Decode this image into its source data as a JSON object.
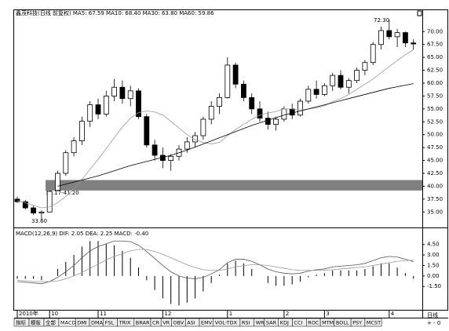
{
  "header": "鑫茂科技(日线 前复权) MA5: 67.59 MA10: 68.40 MA30: 63.80 MA60: 59.86",
  "annotations": {
    "high": "72.30",
    "low": "33.60",
    "band": "39.17-41.20"
  },
  "chart_data": [
    {
      "type": "candlestick",
      "band": [
        39.17,
        41.2
      ],
      "band_color": "#808080",
      "color": "#000000",
      "categories": [
        "2010年",
        null,
        null,
        null,
        "10",
        null,
        null,
        null,
        null,
        null,
        "11",
        null,
        null,
        null,
        null,
        null,
        null,
        null,
        "12",
        null,
        null,
        null,
        null,
        null,
        null,
        null,
        "1",
        null,
        null,
        null,
        null,
        null,
        null,
        "2",
        null,
        null,
        null,
        null,
        "3",
        null,
        null,
        null,
        null,
        null,
        null,
        null,
        "4",
        null,
        null,
        null
      ],
      "open": [
        37.5,
        37.0,
        35.8,
        34.8,
        35.0,
        39.2,
        42.5,
        46.5,
        48.8,
        52.6,
        55.8,
        54.0,
        57.5,
        59.2,
        57.0,
        58.5,
        53.5,
        48.0,
        46.0,
        45.0,
        45.8,
        47.2,
        48.6,
        49.8,
        53.0,
        55.5,
        57.2,
        63.5,
        59.8,
        57.2,
        55.0,
        53.2,
        52.0,
        53.0,
        55.0,
        53.8,
        56.5,
        58.8,
        57.8,
        59.5,
        61.5,
        59.2,
        60.5,
        62.5,
        64.0,
        67.5,
        70.2,
        69.0,
        69.8,
        67.8
      ],
      "high": [
        38.0,
        37.3,
        36.2,
        35.3,
        39.2,
        43.0,
        47.0,
        49.5,
        53.5,
        56.5,
        57.0,
        58.5,
        60.8,
        60.5,
        59.5,
        59.0,
        54.0,
        49.0,
        47.5,
        46.2,
        48.0,
        49.5,
        50.5,
        53.5,
        56.5,
        58.0,
        65.0,
        64.0,
        60.5,
        58.0,
        56.5,
        54.5,
        53.5,
        55.5,
        56.0,
        57.0,
        59.5,
        60.5,
        60.0,
        62.0,
        62.5,
        61.0,
        63.0,
        64.5,
        68.0,
        71.0,
        72.3,
        70.5,
        70.0,
        68.5
      ],
      "low": [
        36.8,
        35.5,
        34.5,
        33.6,
        35.0,
        39.0,
        42.0,
        45.8,
        48.0,
        51.5,
        53.0,
        53.5,
        56.5,
        56.0,
        55.5,
        53.0,
        47.5,
        45.0,
        43.5,
        43.0,
        45.0,
        46.5,
        47.5,
        49.0,
        52.0,
        54.0,
        57.0,
        59.0,
        56.5,
        54.0,
        52.5,
        51.0,
        50.8,
        52.5,
        53.0,
        53.5,
        56.0,
        57.0,
        57.5,
        58.5,
        58.8,
        58.0,
        60.0,
        61.5,
        63.5,
        66.5,
        68.5,
        67.0,
        67.0,
        66.5
      ],
      "close": [
        37.0,
        35.8,
        34.8,
        35.0,
        39.0,
        42.5,
        46.5,
        48.8,
        52.6,
        55.8,
        54.0,
        57.5,
        59.2,
        57.0,
        58.5,
        53.5,
        48.0,
        46.0,
        45.0,
        45.8,
        47.2,
        48.6,
        49.8,
        53.0,
        55.5,
        57.2,
        63.5,
        59.8,
        57.2,
        55.0,
        53.2,
        52.0,
        53.0,
        55.0,
        53.8,
        56.5,
        58.8,
        57.8,
        59.5,
        61.5,
        59.2,
        60.5,
        62.5,
        64.0,
        67.5,
        70.2,
        69.0,
        69.8,
        67.8,
        67.6
      ],
      "lines": [
        {
          "color": "#999999",
          "values": [
            37.2,
            36.8,
            36.3,
            35.8,
            36.0,
            36.8,
            38.0,
            39.5,
            41.3,
            43.3,
            45.2,
            47.3,
            49.4,
            51.5,
            53.2,
            54.3,
            54.6,
            54.4,
            53.8,
            52.6,
            51.3,
            50.0,
            49.0,
            48.5,
            48.2,
            48.5,
            49.8,
            51.0,
            52.0,
            53.0,
            53.8,
            54.2,
            54.5,
            55.0,
            55.0,
            54.8,
            55.0,
            55.2,
            55.6,
            56.4,
            57.0,
            57.8,
            58.8,
            59.8,
            60.8,
            62.0,
            63.2,
            64.4,
            65.5,
            66.5
          ]
        },
        {
          "color": "#000000",
          "values": [
            null,
            null,
            null,
            null,
            null,
            40.0,
            40.4,
            40.8,
            41.2,
            41.6,
            42.0,
            42.5,
            43.0,
            43.5,
            44.0,
            44.4,
            44.8,
            45.2,
            45.6,
            46.0,
            46.5,
            47.0,
            47.6,
            48.2,
            48.8,
            49.4,
            50.0,
            50.6,
            51.2,
            51.8,
            52.3,
            52.8,
            53.3,
            53.8,
            54.2,
            54.6,
            55.0,
            55.4,
            55.8,
            56.2,
            56.6,
            57.0,
            57.4,
            57.8,
            58.2,
            58.6,
            59.0,
            59.3,
            59.6,
            59.9
          ]
        }
      ],
      "ylim": [
        32,
        74.3
      ],
      "yticks": [
        {
          "value": 35,
          "label": "35.00"
        },
        {
          "value": 37.5,
          "label": "37.50"
        },
        {
          "value": 40,
          "label": "40.00"
        },
        {
          "value": 42.5,
          "label": "42.50"
        },
        {
          "value": 45,
          "label": "45.00"
        },
        {
          "value": 47.5,
          "label": "47.50"
        },
        {
          "value": 50,
          "label": "50.00"
        },
        {
          "value": 52.5,
          "label": "52.50"
        },
        {
          "value": 55,
          "label": "55.00"
        },
        {
          "value": 57.5,
          "label": "57.50"
        },
        {
          "value": 60,
          "label": "60.00"
        },
        {
          "value": 62.5,
          "label": "62.50"
        },
        {
          "value": 65,
          "label": "65.00"
        },
        {
          "value": 67.5,
          "label": "67.50"
        },
        {
          "value": 70,
          "label": "70.00"
        }
      ]
    },
    {
      "type": "macd",
      "title": "MACD(12,26,9) DIF: 2.05 DEA: 2.25 MACD: -0.40",
      "series": [
        {
          "color": "#555555",
          "values": [
            -0.8,
            -0.9,
            -1.0,
            -1.1,
            -0.8,
            -0.2,
            0.6,
            1.5,
            2.6,
            3.6,
            4.2,
            4.6,
            5.0,
            5.0,
            4.9,
            4.4,
            3.5,
            2.5,
            1.5,
            0.6,
            0.0,
            -0.3,
            -0.4,
            -0.2,
            0.3,
            0.9,
            1.9,
            2.4,
            2.4,
            2.1,
            1.6,
            1.0,
            0.6,
            0.4,
            0.3,
            0.4,
            0.7,
            0.9,
            1.0,
            1.3,
            1.4,
            1.5,
            1.6,
            1.8,
            2.2,
            2.6,
            2.8,
            2.7,
            2.4,
            2.05
          ]
        },
        {
          "color": "#999999",
          "values": [
            -0.6,
            -0.7,
            -0.8,
            -0.8,
            -0.8,
            -0.7,
            -0.4,
            0.0,
            0.5,
            1.1,
            1.7,
            2.3,
            2.8,
            3.2,
            3.6,
            3.8,
            3.8,
            3.5,
            3.1,
            2.6,
            2.1,
            1.6,
            1.2,
            0.9,
            0.8,
            0.8,
            1.0,
            1.3,
            1.5,
            1.6,
            1.6,
            1.5,
            1.3,
            1.1,
            0.9,
            0.8,
            0.8,
            0.8,
            0.8,
            0.9,
            1.0,
            1.1,
            1.2,
            1.3,
            1.5,
            1.7,
            1.9,
            2.1,
            2.2,
            2.25
          ]
        }
      ],
      "values": [
        -0.4,
        -0.4,
        -0.4,
        -0.6,
        0.0,
        1.0,
        2.0,
        3.0,
        4.2,
        5.0,
        5.0,
        4.6,
        4.4,
        3.6,
        2.6,
        1.2,
        -0.6,
        -2.0,
        -3.2,
        -4.0,
        -4.2,
        -3.8,
        -3.2,
        -2.2,
        -1.0,
        0.2,
        1.8,
        2.2,
        1.8,
        1.0,
        0.0,
        -1.0,
        -1.4,
        -1.4,
        -1.2,
        -0.8,
        -0.2,
        0.2,
        0.4,
        0.8,
        0.8,
        0.8,
        0.8,
        1.0,
        1.4,
        1.8,
        1.8,
        1.2,
        0.4,
        -0.4
      ],
      "color": "#000000",
      "ylim": [
        -4.5,
        6.6
      ],
      "yticks": [
        {
          "value": 4.5,
          "label": "4.50"
        },
        {
          "value": 3,
          "label": "3.00"
        },
        {
          "value": 1.5,
          "label": "1.50"
        },
        {
          "value": 0,
          "label": "0.00"
        },
        {
          "value": -1.5,
          "label": "-1.50"
        }
      ]
    }
  ],
  "tabs": [
    "指标",
    "模板",
    "全部",
    "MACD",
    "DMI",
    "DMA",
    "FSL",
    "TRIX",
    "BRAR",
    "CR",
    "VR",
    "OBV",
    "ASI",
    "EMV",
    "VOL-TDX",
    "RSI",
    "WR",
    "SAR",
    "KDJ",
    "CCI",
    "ROC",
    "MTM",
    "BOLL",
    "PSY",
    "MCST"
  ],
  "period": "日线"
}
